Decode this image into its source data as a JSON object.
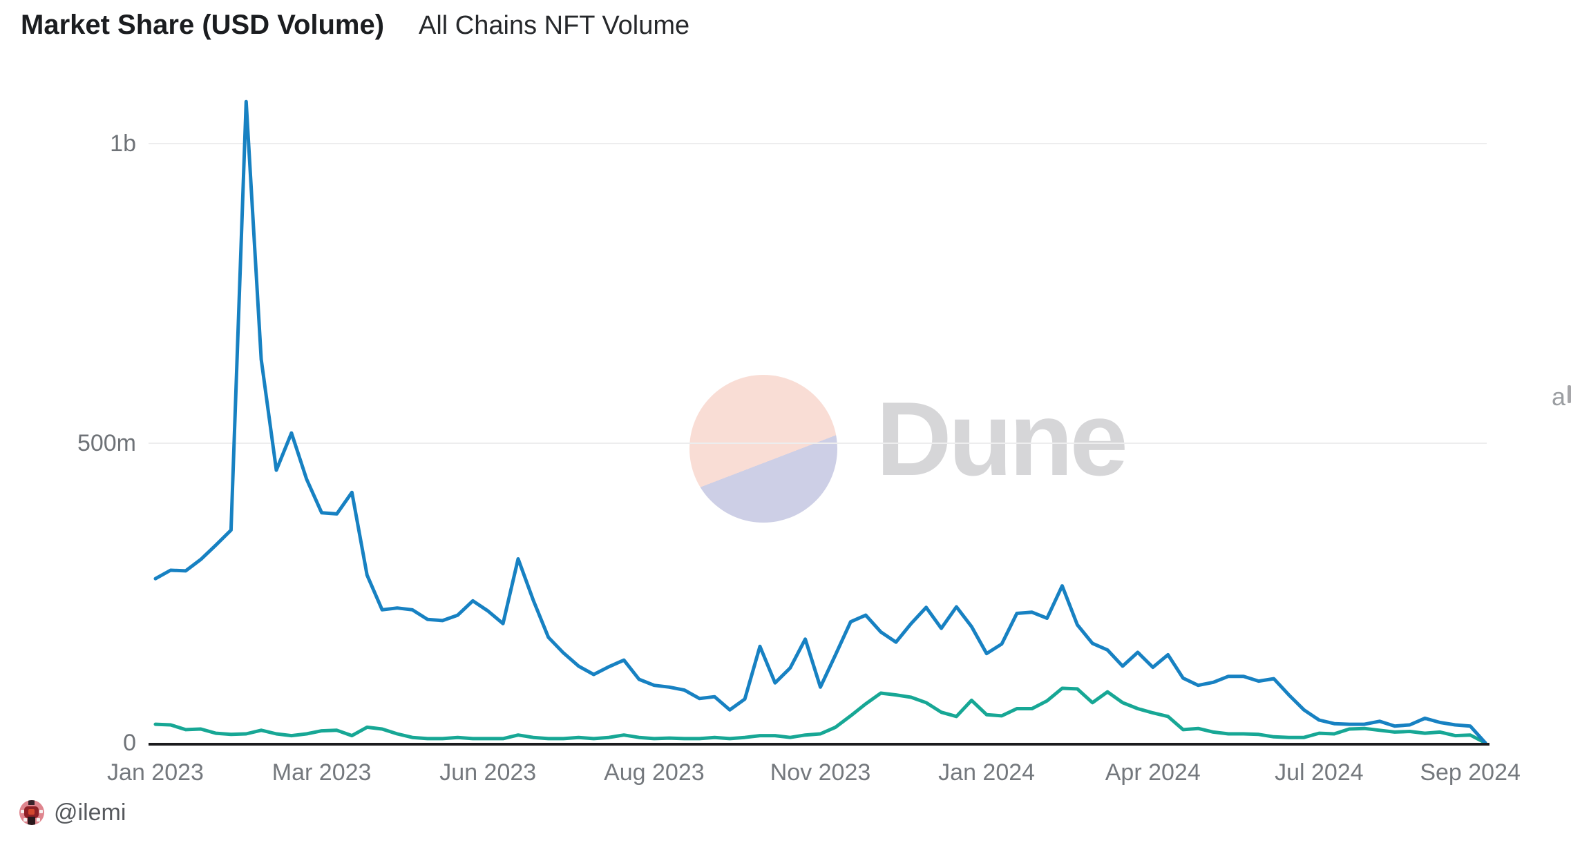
{
  "header": {
    "title": "Market Share (USD Volume)",
    "subtitle": "All Chains NFT Volume"
  },
  "watermark": {
    "brand": "Dune"
  },
  "footer": {
    "author_handle": "@ilemi"
  },
  "edge_label": "a",
  "colors": {
    "series_blue": "#1781c2",
    "series_teal": "#17a795",
    "axis_line": "#1b1c1e",
    "gridline": "#ededee",
    "tick_text": "#74787d",
    "title_text": "#1b1d20",
    "watermark_text": "#d6d6d8",
    "watermark_circle_top": "#f9ddd5",
    "watermark_circle_bottom": "#cdcfe6"
  },
  "chart_data": {
    "type": "line",
    "title": "Market Share (USD Volume)",
    "subtitle": "All Chains NFT Volume",
    "grid": "horizontal",
    "legend": "none",
    "x_axis_kind": "weekly dates, Jan 2023 to Sep 2024",
    "values_unit": "USD millions",
    "ylim": [
      0,
      1124
    ],
    "y_ticks": [
      {
        "value": 0,
        "label": "0"
      },
      {
        "value": 500,
        "label": "500m"
      },
      {
        "value": 1000,
        "label": "1b"
      }
    ],
    "x_ticks": [
      {
        "index": 0,
        "label": "Jan 2023"
      },
      {
        "index": 11,
        "label": "Mar 2023"
      },
      {
        "index": 22,
        "label": "Jun 2023"
      },
      {
        "index": 33,
        "label": "Aug 2023"
      },
      {
        "index": 44,
        "label": "Nov 2023"
      },
      {
        "index": 55,
        "label": "Jan 2024"
      },
      {
        "index": 66,
        "label": "Apr 2024"
      },
      {
        "index": 77,
        "label": "Jul 2024"
      },
      {
        "index": 87,
        "label": "Sep 2024"
      }
    ],
    "series": [
      {
        "name": "blue-series",
        "color": "#1781c2",
        "values": [
          274,
          288,
          287,
          306,
          330,
          355,
          1070,
          640,
          455,
          517,
          440,
          384,
          382,
          418,
          280,
          222,
          225,
          222,
          206,
          204,
          213,
          237,
          220,
          199,
          307,
          238,
          176,
          150,
          128,
          114,
          127,
          138,
          106,
          96,
          93,
          88,
          74,
          77,
          55,
          73,
          161,
          100,
          125,
          173,
          93,
          147,
          202,
          213,
          185,
          168,
          199,
          226,
          191,
          227,
          194,
          149,
          165,
          216,
          218,
          208,
          262,
          197,
          166,
          155,
          128,
          151,
          126,
          147,
          108,
          96,
          101,
          111,
          111,
          103,
          107,
          80,
          55,
          38,
          32,
          31,
          31,
          36,
          28,
          30,
          41,
          34,
          30,
          28,
          0
        ]
      },
      {
        "name": "teal-series",
        "color": "#17a795",
        "values": [
          31,
          30,
          22,
          23,
          16,
          14,
          15,
          21,
          15,
          12,
          15,
          20,
          21,
          12,
          26,
          23,
          15,
          9,
          7,
          7,
          9,
          7,
          7,
          7,
          13,
          9,
          7,
          7,
          9,
          7,
          9,
          13,
          9,
          7,
          8,
          7,
          7,
          9,
          7,
          9,
          12,
          12,
          9,
          13,
          15,
          26,
          45,
          65,
          83,
          80,
          76,
          67,
          51,
          44,
          71,
          47,
          45,
          57,
          57,
          70,
          91,
          90,
          67,
          85,
          67,
          57,
          50,
          44,
          22,
          24,
          18,
          15,
          15,
          14,
          10,
          9,
          9,
          16,
          15,
          23,
          24,
          21,
          18,
          19,
          16,
          18,
          12,
          13,
          0
        ]
      }
    ]
  }
}
